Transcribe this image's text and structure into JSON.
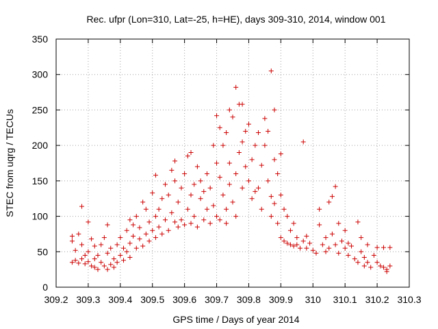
{
  "chart_data": {
    "type": "scatter",
    "title": "Rec. ufpr (Lon=310, Lat=-25, h=HE), days 309-310, 2014, window 001",
    "xlabel": "GPS time / Days of year 2014",
    "ylabel": "STEC from uqrg / TECUs",
    "xlim": [
      309.2,
      310.3
    ],
    "ylim": [
      0,
      350
    ],
    "xticks": [
      "309.2",
      "309.3",
      "309.4",
      "309.5",
      "309.6",
      "309.7",
      "309.8",
      "309.9",
      "310",
      "310.1",
      "310.2",
      "310.3"
    ],
    "yticks": [
      "0",
      "50",
      "100",
      "150",
      "200",
      "250",
      "300",
      "350"
    ],
    "grid": true,
    "legend": "none",
    "marker": "+",
    "marker_color": "#cc0000",
    "series": [
      {
        "name": "STEC",
        "points": [
          [
            309.25,
            35
          ],
          [
            309.25,
            65
          ],
          [
            309.25,
            72
          ],
          [
            309.26,
            38
          ],
          [
            309.26,
            52
          ],
          [
            309.27,
            75
          ],
          [
            309.27,
            34
          ],
          [
            309.28,
            114
          ],
          [
            309.28,
            40
          ],
          [
            309.28,
            60
          ],
          [
            309.29,
            45
          ],
          [
            309.29,
            33
          ],
          [
            309.3,
            92
          ],
          [
            309.3,
            36
          ],
          [
            309.3,
            50
          ],
          [
            309.31,
            68
          ],
          [
            309.31,
            30
          ],
          [
            309.32,
            40
          ],
          [
            309.32,
            28
          ],
          [
            309.32,
            58
          ],
          [
            309.33,
            25
          ],
          [
            309.33,
            45
          ],
          [
            309.34,
            35
          ],
          [
            309.34,
            60
          ],
          [
            309.35,
            70
          ],
          [
            309.35,
            30
          ],
          [
            309.36,
            88
          ],
          [
            309.36,
            25
          ],
          [
            309.36,
            48
          ],
          [
            309.37,
            32
          ],
          [
            309.37,
            55
          ],
          [
            309.38,
            40
          ],
          [
            309.38,
            28
          ],
          [
            309.39,
            60
          ],
          [
            309.39,
            35
          ],
          [
            309.4,
            45
          ],
          [
            309.4,
            70
          ],
          [
            309.41,
            38
          ],
          [
            309.41,
            55
          ],
          [
            309.42,
            80
          ],
          [
            309.42,
            50
          ],
          [
            309.43,
            95
          ],
          [
            309.43,
            62
          ],
          [
            309.43,
            42
          ],
          [
            309.44,
            72
          ],
          [
            309.44,
            88
          ],
          [
            309.45,
            55
          ],
          [
            309.45,
            100
          ],
          [
            309.46,
            68
          ],
          [
            309.46,
            84
          ],
          [
            309.47,
            120
          ],
          [
            309.47,
            58
          ],
          [
            309.48,
            110
          ],
          [
            309.48,
            75
          ],
          [
            309.49,
            92
          ],
          [
            309.49,
            65
          ],
          [
            309.5,
            133
          ],
          [
            309.5,
            80
          ],
          [
            309.51,
            158
          ],
          [
            309.51,
            100
          ],
          [
            309.51,
            70
          ],
          [
            309.52,
            110
          ],
          [
            309.52,
            85
          ],
          [
            309.53,
            125
          ],
          [
            309.53,
            75
          ],
          [
            309.54,
            145
          ],
          [
            309.54,
            95
          ],
          [
            309.55,
            130
          ],
          [
            309.55,
            80
          ],
          [
            309.56,
            165
          ],
          [
            309.56,
            105
          ],
          [
            309.57,
            178
          ],
          [
            309.57,
            92
          ],
          [
            309.57,
            150
          ],
          [
            309.58,
            120
          ],
          [
            309.58,
            85
          ],
          [
            309.59,
            140
          ],
          [
            309.59,
            95
          ],
          [
            309.6,
            160
          ],
          [
            309.6,
            88
          ],
          [
            309.61,
            185
          ],
          [
            309.61,
            110
          ],
          [
            309.62,
            190
          ],
          [
            309.62,
            130
          ],
          [
            309.62,
            90
          ],
          [
            309.63,
            145
          ],
          [
            309.63,
            100
          ],
          [
            309.64,
            170
          ],
          [
            309.64,
            85
          ],
          [
            309.65,
            125
          ],
          [
            309.65,
            150
          ],
          [
            309.66,
            95
          ],
          [
            309.66,
            135
          ],
          [
            309.67,
            160
          ],
          [
            309.67,
            110
          ],
          [
            309.68,
            140
          ],
          [
            309.68,
            90
          ],
          [
            309.69,
            200
          ],
          [
            309.69,
            115
          ],
          [
            309.7,
            242
          ],
          [
            309.7,
            175
          ],
          [
            309.7,
            100
          ],
          [
            309.71,
            225
          ],
          [
            309.71,
            155
          ],
          [
            309.71,
            95
          ],
          [
            309.72,
            200
          ],
          [
            309.72,
            130
          ],
          [
            309.73,
            218
          ],
          [
            309.73,
            110
          ],
          [
            309.73,
            90
          ],
          [
            309.74,
            250
          ],
          [
            309.74,
            175
          ],
          [
            309.74,
            145
          ],
          [
            309.75,
            240
          ],
          [
            309.75,
            120
          ],
          [
            309.76,
            282
          ],
          [
            309.76,
            160
          ],
          [
            309.76,
            100
          ],
          [
            309.77,
            258
          ],
          [
            309.77,
            190
          ],
          [
            309.78,
            258
          ],
          [
            309.78,
            205
          ],
          [
            309.78,
            140
          ],
          [
            309.79,
            220
          ],
          [
            309.79,
            170
          ],
          [
            309.8,
            150
          ],
          [
            309.8,
            230
          ],
          [
            309.81,
            125
          ],
          [
            309.81,
            180
          ],
          [
            309.82,
            135
          ],
          [
            309.82,
            200
          ],
          [
            309.83,
            218
          ],
          [
            309.83,
            140
          ],
          [
            309.84,
            172
          ],
          [
            309.84,
            110
          ],
          [
            309.85,
            238
          ],
          [
            309.85,
            200
          ],
          [
            309.86,
            220
          ],
          [
            309.86,
            150
          ],
          [
            309.87,
            305
          ],
          [
            309.87,
            128
          ],
          [
            309.87,
            100
          ],
          [
            309.88,
            250
          ],
          [
            309.88,
            180
          ],
          [
            309.88,
            118
          ],
          [
            309.89,
            160
          ],
          [
            309.89,
            90
          ],
          [
            309.9,
            188
          ],
          [
            309.9,
            70
          ],
          [
            309.9,
            130
          ],
          [
            309.91,
            110
          ],
          [
            309.91,
            65
          ],
          [
            309.92,
            100
          ],
          [
            309.92,
            62
          ],
          [
            309.93,
            80
          ],
          [
            309.93,
            60
          ],
          [
            309.94,
            90
          ],
          [
            309.94,
            58
          ],
          [
            309.95,
            70
          ],
          [
            309.95,
            60
          ],
          [
            309.96,
            55
          ],
          [
            309.97,
            205
          ],
          [
            309.97,
            65
          ],
          [
            309.98,
            72
          ],
          [
            309.98,
            55
          ],
          [
            309.99,
            62
          ],
          [
            310.0,
            52
          ],
          [
            310.01,
            48
          ],
          [
            310.02,
            110
          ],
          [
            310.02,
            88
          ],
          [
            310.03,
            60
          ],
          [
            310.04,
            70
          ],
          [
            310.04,
            50
          ],
          [
            310.05,
            120
          ],
          [
            310.05,
            55
          ],
          [
            310.06,
            128
          ],
          [
            310.06,
            75
          ],
          [
            310.07,
            142
          ],
          [
            310.07,
            60
          ],
          [
            310.08,
            90
          ],
          [
            310.08,
            48
          ],
          [
            310.09,
            65
          ],
          [
            310.1,
            80
          ],
          [
            310.1,
            55
          ],
          [
            310.11,
            62
          ],
          [
            310.11,
            45
          ],
          [
            310.12,
            58
          ],
          [
            310.13,
            40
          ],
          [
            310.14,
            92
          ],
          [
            310.14,
            35
          ],
          [
            310.15,
            70
          ],
          [
            310.15,
            50
          ],
          [
            310.16,
            42
          ],
          [
            310.16,
            30
          ],
          [
            310.17,
            60
          ],
          [
            310.17,
            35
          ],
          [
            310.18,
            28
          ],
          [
            310.19,
            45
          ],
          [
            310.2,
            35
          ],
          [
            310.2,
            56
          ],
          [
            310.21,
            30
          ],
          [
            310.22,
            28
          ],
          [
            310.22,
            56
          ],
          [
            310.23,
            25
          ],
          [
            310.23,
            22
          ],
          [
            310.24,
            30
          ],
          [
            310.24,
            56
          ]
        ]
      }
    ]
  }
}
